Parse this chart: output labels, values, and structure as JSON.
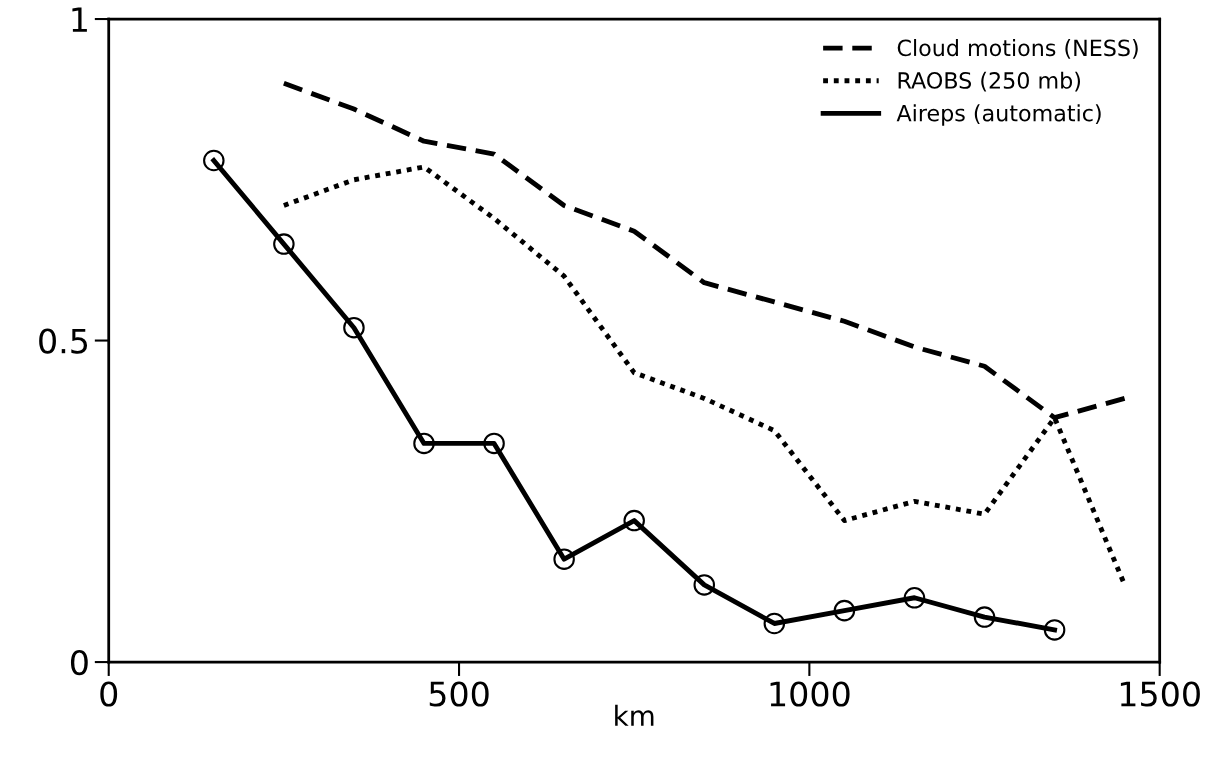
{
  "chart_data": {
    "type": "line",
    "xlabel": "km",
    "xlim": [
      0,
      1500
    ],
    "xticks": [
      0,
      500,
      1000,
      1500
    ],
    "ylim": [
      0,
      1
    ],
    "yticks": [
      0,
      0.5,
      1
    ],
    "grid": false,
    "legend": "top right",
    "series": [
      {
        "name": "Cloud motions (NESS)",
        "color": "#000000",
        "line_style": "dashed",
        "marker": "none",
        "x": [
          250,
          350,
          450,
          550,
          650,
          750,
          850,
          950,
          1050,
          1150,
          1250,
          1350,
          1450
        ],
        "values": [
          0.9,
          0.86,
          0.81,
          0.79,
          0.71,
          0.67,
          0.59,
          0.56,
          0.53,
          0.49,
          0.46,
          0.38,
          0.41
        ]
      },
      {
        "name": "RAOBS (250 mb)",
        "color": "#000000",
        "line_style": "dotted",
        "marker": "none",
        "x": [
          250,
          350,
          450,
          550,
          650,
          750,
          850,
          950,
          1050,
          1150,
          1250,
          1350,
          1450
        ],
        "values": [
          0.71,
          0.75,
          0.77,
          0.69,
          0.6,
          0.45,
          0.41,
          0.36,
          0.22,
          0.25,
          0.23,
          0.38,
          0.12
        ]
      },
      {
        "name": "Aireps (automatic)",
        "color": "#000000",
        "line_style": "solid",
        "marker": "circle",
        "x": [
          150,
          250,
          350,
          450,
          550,
          650,
          750,
          850,
          950,
          1050,
          1150,
          1250,
          1350
        ],
        "values": [
          0.78,
          0.65,
          0.52,
          0.34,
          0.34,
          0.16,
          0.22,
          0.12,
          0.06,
          0.08,
          0.1,
          0.07,
          0.05
        ]
      }
    ]
  }
}
